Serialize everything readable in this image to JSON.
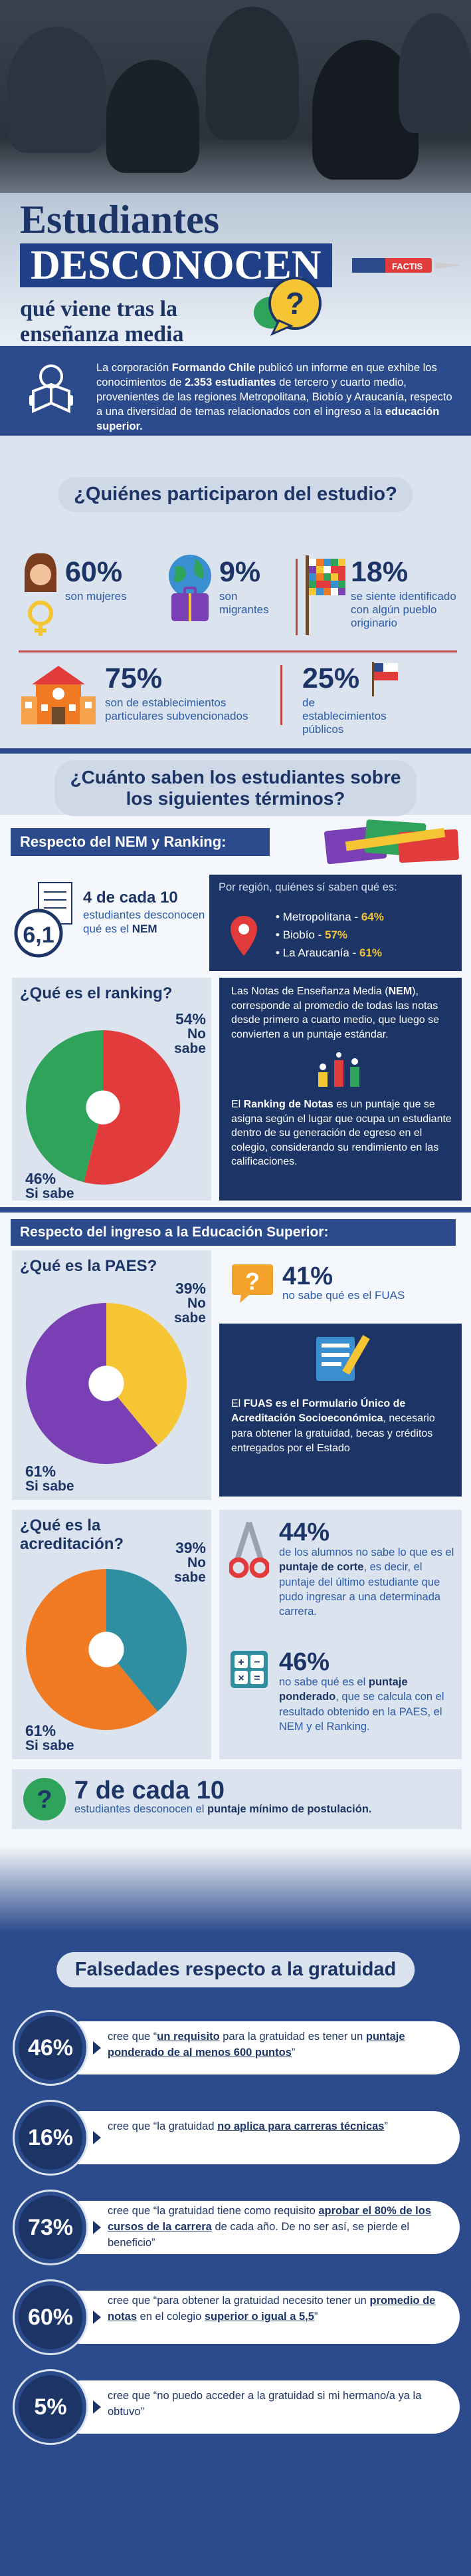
{
  "hero": {
    "title_line1": "Estudiantes",
    "title_line2": "DESCONOCEN",
    "subtitle": "qué viene tras la enseñanza media",
    "question_mark": "?",
    "eraser_brand": "FACTIS"
  },
  "intro": {
    "part1": "La corporación ",
    "org": "Formando Chile",
    "part2": " publicó un informe en que exhibe los conocimientos de ",
    "count": "2.353 estudiantes",
    "part3": " de tercero y cuarto medio, provenientes de las regiones Metropolitana, Biobío y Araucanía, respecto a una diversidad de temas relacionados con el ingreso a la ",
    "highlight": "educación superior."
  },
  "participants": {
    "heading": "¿Quiénes participaron del estudio?",
    "stats": [
      {
        "value": "60%",
        "label": "son mujeres",
        "icon": "female-icon"
      },
      {
        "value": "9%",
        "label": "son migrantes",
        "icon": "globe-luggage-icon"
      },
      {
        "value": "18%",
        "label": "se siente identificado con algún pueblo originario",
        "icon": "wiphala-flag-icon"
      },
      {
        "value": "75%",
        "label": "son de establecimientos particulares subvencionados",
        "icon": "school-icon"
      },
      {
        "value": "25%",
        "label": "de establecimientos públicos",
        "icon": "chile-flag-icon"
      }
    ]
  },
  "knowledge": {
    "heading_line1": "¿Cuánto saben los estudiantes sobre",
    "heading_line2": "los siguientes términos?",
    "nem_section": "Respecto del NEM y Ranking:",
    "nem_stat_value": "4 de cada 10",
    "nem_stat_text1": "estudiantes desconocen qué es el ",
    "nem_stat_bold": "NEM",
    "nem_badge": "6,1",
    "region_intro": "Por región, quiénes sí saben qué es:",
    "regions": [
      {
        "name": "Metropolitana - ",
        "value": "64%"
      },
      {
        "name": "Biobío - ",
        "value": "57%"
      },
      {
        "name": "La Araucanía - ",
        "value": "61%"
      }
    ],
    "ranking_q": "¿Qué es el ranking?",
    "ranking_no": "54%",
    "ranking_no_label": "No sabe",
    "ranking_yes": "46%",
    "ranking_yes_label": "Si sabe",
    "nem_def_a": "Las Notas de Enseñanza Media (",
    "nem_def_bold": "NEM",
    "nem_def_b": "), corresponde al promedio de todas las notas desde primero a cuarto medio, que luego se convierten a un puntaje estándar.",
    "rank_def_a": "El ",
    "rank_def_bold": "Ranking de Notas",
    "rank_def_b": " es un puntaje que se asigna según el lugar que ocupa un estudiante dentro de su generación de egreso en el colegio, considerando su rendimiento en las calificaciones."
  },
  "higher": {
    "section": "Respecto del ingreso a la Educación Superior:",
    "paes_q": "¿Qué es la PAES?",
    "paes_no": "39%",
    "paes_no_label": "No sabe",
    "paes_yes": "61%",
    "paes_yes_label": "Si sabe",
    "fuas_value": "41%",
    "fuas_text": "no sabe qué es el FUAS",
    "fuas_def_a": "El ",
    "fuas_def_bold": "FUAS es el Formulario Único de Acreditación Socioeconómica",
    "fuas_def_b": ", necesario para obtener la gratuidad, becas y créditos entregados por el Estado",
    "acred_q1": "¿Qué es la",
    "acred_q2": "acreditación?",
    "acred_no": "39%",
    "acred_no_label": "No sabe",
    "acred_yes": "61%",
    "acred_yes_label": "Si sabe",
    "corte_value": "44%",
    "corte_a": "de los alumnos no sabe lo que es el ",
    "corte_bold": "puntaje de corte",
    "corte_b": ", es decir, el puntaje del último estudiante que pudo ingresar a una determinada carrera.",
    "pond_value": "46%",
    "pond_a": "no sabe qué es el ",
    "pond_bold": "puntaje ponderado",
    "pond_b": ", que se calcula con el resultado obtenido en la PAES, el NEM y el Ranking.",
    "min_value": "7 de cada 10",
    "min_a": "estudiantes desconocen el ",
    "min_bold": "puntaje mínimo de postulación."
  },
  "false_section": {
    "heading": "Falsedades respecto a la gratuidad",
    "items": [
      {
        "value": "46%",
        "a": "cree que “",
        "b": "un requisito",
        "c": " para la gratuidad es tener un ",
        "d": "puntaje ponderado de al menos 600 puntos",
        "e": "”"
      },
      {
        "value": "16%",
        "a": "cree que “la gratuidad ",
        "b": "no aplica para carreras técnicas",
        "c": "”",
        "d": "",
        "e": ""
      },
      {
        "value": "73%",
        "a": "cree que “la gratuidad tiene como requisito ",
        "b": "aprobar el 80% de los cursos de la carrera",
        "c": " de cada año. De no ser así, se pierde el beneficio”",
        "d": "",
        "e": ""
      },
      {
        "value": "60%",
        "a": "cree que “para obtener la gratuidad necesito tener un ",
        "b": "promedio de notas",
        "c": " en el colegio ",
        "d": "superior o igual a 5,5",
        "e": "”"
      },
      {
        "value": "5%",
        "a": "cree que “no puedo acceder a la gratuidad si mi hermano/a ya la obtuvo”",
        "b": "",
        "c": "",
        "d": "",
        "e": ""
      }
    ]
  },
  "colors": {
    "navy": "#1c3566",
    "blue": "#2c4b8c",
    "red": "#e23b3b",
    "green": "#2fa35a",
    "yellow": "#f5c534",
    "purple": "#7a3fb5",
    "teal": "#2f8ea0",
    "orange": "#f07a22"
  }
}
